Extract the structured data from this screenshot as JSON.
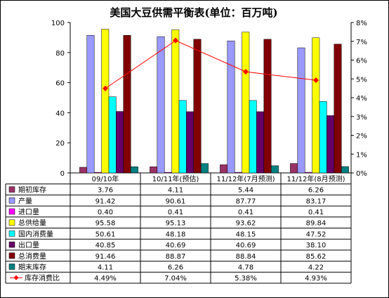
{
  "chart_data": {
    "type": "bar",
    "title": "美国大豆供需平衡表(单位：百万吨)",
    "categories": [
      "09/10年",
      "10/11年(预估)",
      "11/12年(7月预测)",
      "11/12年(8月预测)"
    ],
    "ylim": [
      0,
      100
    ],
    "yticks": [
      0,
      20,
      40,
      60,
      80,
      100
    ],
    "y2lim": [
      0,
      8
    ],
    "y2ticks": [
      "0%",
      "1%",
      "2%",
      "3%",
      "4%",
      "5%",
      "6%",
      "7%",
      "8%"
    ],
    "series": [
      {
        "name": "期初库存",
        "color": "#993366",
        "values": [
          3.76,
          4.11,
          5.44,
          6.26
        ],
        "labels": [
          "3.76",
          "4.11",
          "5.44",
          "6.26"
        ]
      },
      {
        "name": "产量",
        "color": "#9999FF",
        "values": [
          91.42,
          90.61,
          87.77,
          83.17
        ],
        "labels": [
          "91.42",
          "90.61",
          "87.77",
          "83.17"
        ]
      },
      {
        "name": "进口量",
        "color": "#FF00FF",
        "values": [
          0.4,
          0.41,
          0.41,
          0.41
        ],
        "labels": [
          "0.40",
          "0.41",
          "0.41",
          "0.41"
        ]
      },
      {
        "name": "总供给量",
        "color": "#FFFF00",
        "values": [
          95.58,
          95.13,
          93.62,
          89.84
        ],
        "labels": [
          "95.58",
          "95.13",
          "93.62",
          "89.84"
        ]
      },
      {
        "name": "国内消费量",
        "color": "#00FFFF",
        "values": [
          50.61,
          48.18,
          48.15,
          47.52
        ],
        "labels": [
          "50.61",
          "48.18",
          "48.15",
          "47.52"
        ]
      },
      {
        "name": "出口量",
        "color": "#660066",
        "values": [
          40.85,
          40.69,
          40.69,
          38.1
        ],
        "labels": [
          "40.85",
          "40.69",
          "40.69",
          "38.10"
        ]
      },
      {
        "name": "总消费量",
        "color": "#800000",
        "values": [
          91.46,
          88.87,
          88.84,
          85.62
        ],
        "labels": [
          "91.46",
          "88.87",
          "88.84",
          "85.62"
        ]
      },
      {
        "name": "期末库存",
        "color": "#008080",
        "values": [
          4.11,
          6.26,
          4.78,
          4.22
        ],
        "labels": [
          "4.11",
          "6.26",
          "4.78",
          "4.22"
        ]
      }
    ],
    "line_series": {
      "name": "库存消费比",
      "color": "#FF0000",
      "values": [
        4.49,
        7.04,
        5.38,
        4.93
      ],
      "labels": [
        "4.49%",
        "7.04%",
        "5.38%",
        "4.93%"
      ]
    },
    "legend_placement": "data-table-below"
  }
}
